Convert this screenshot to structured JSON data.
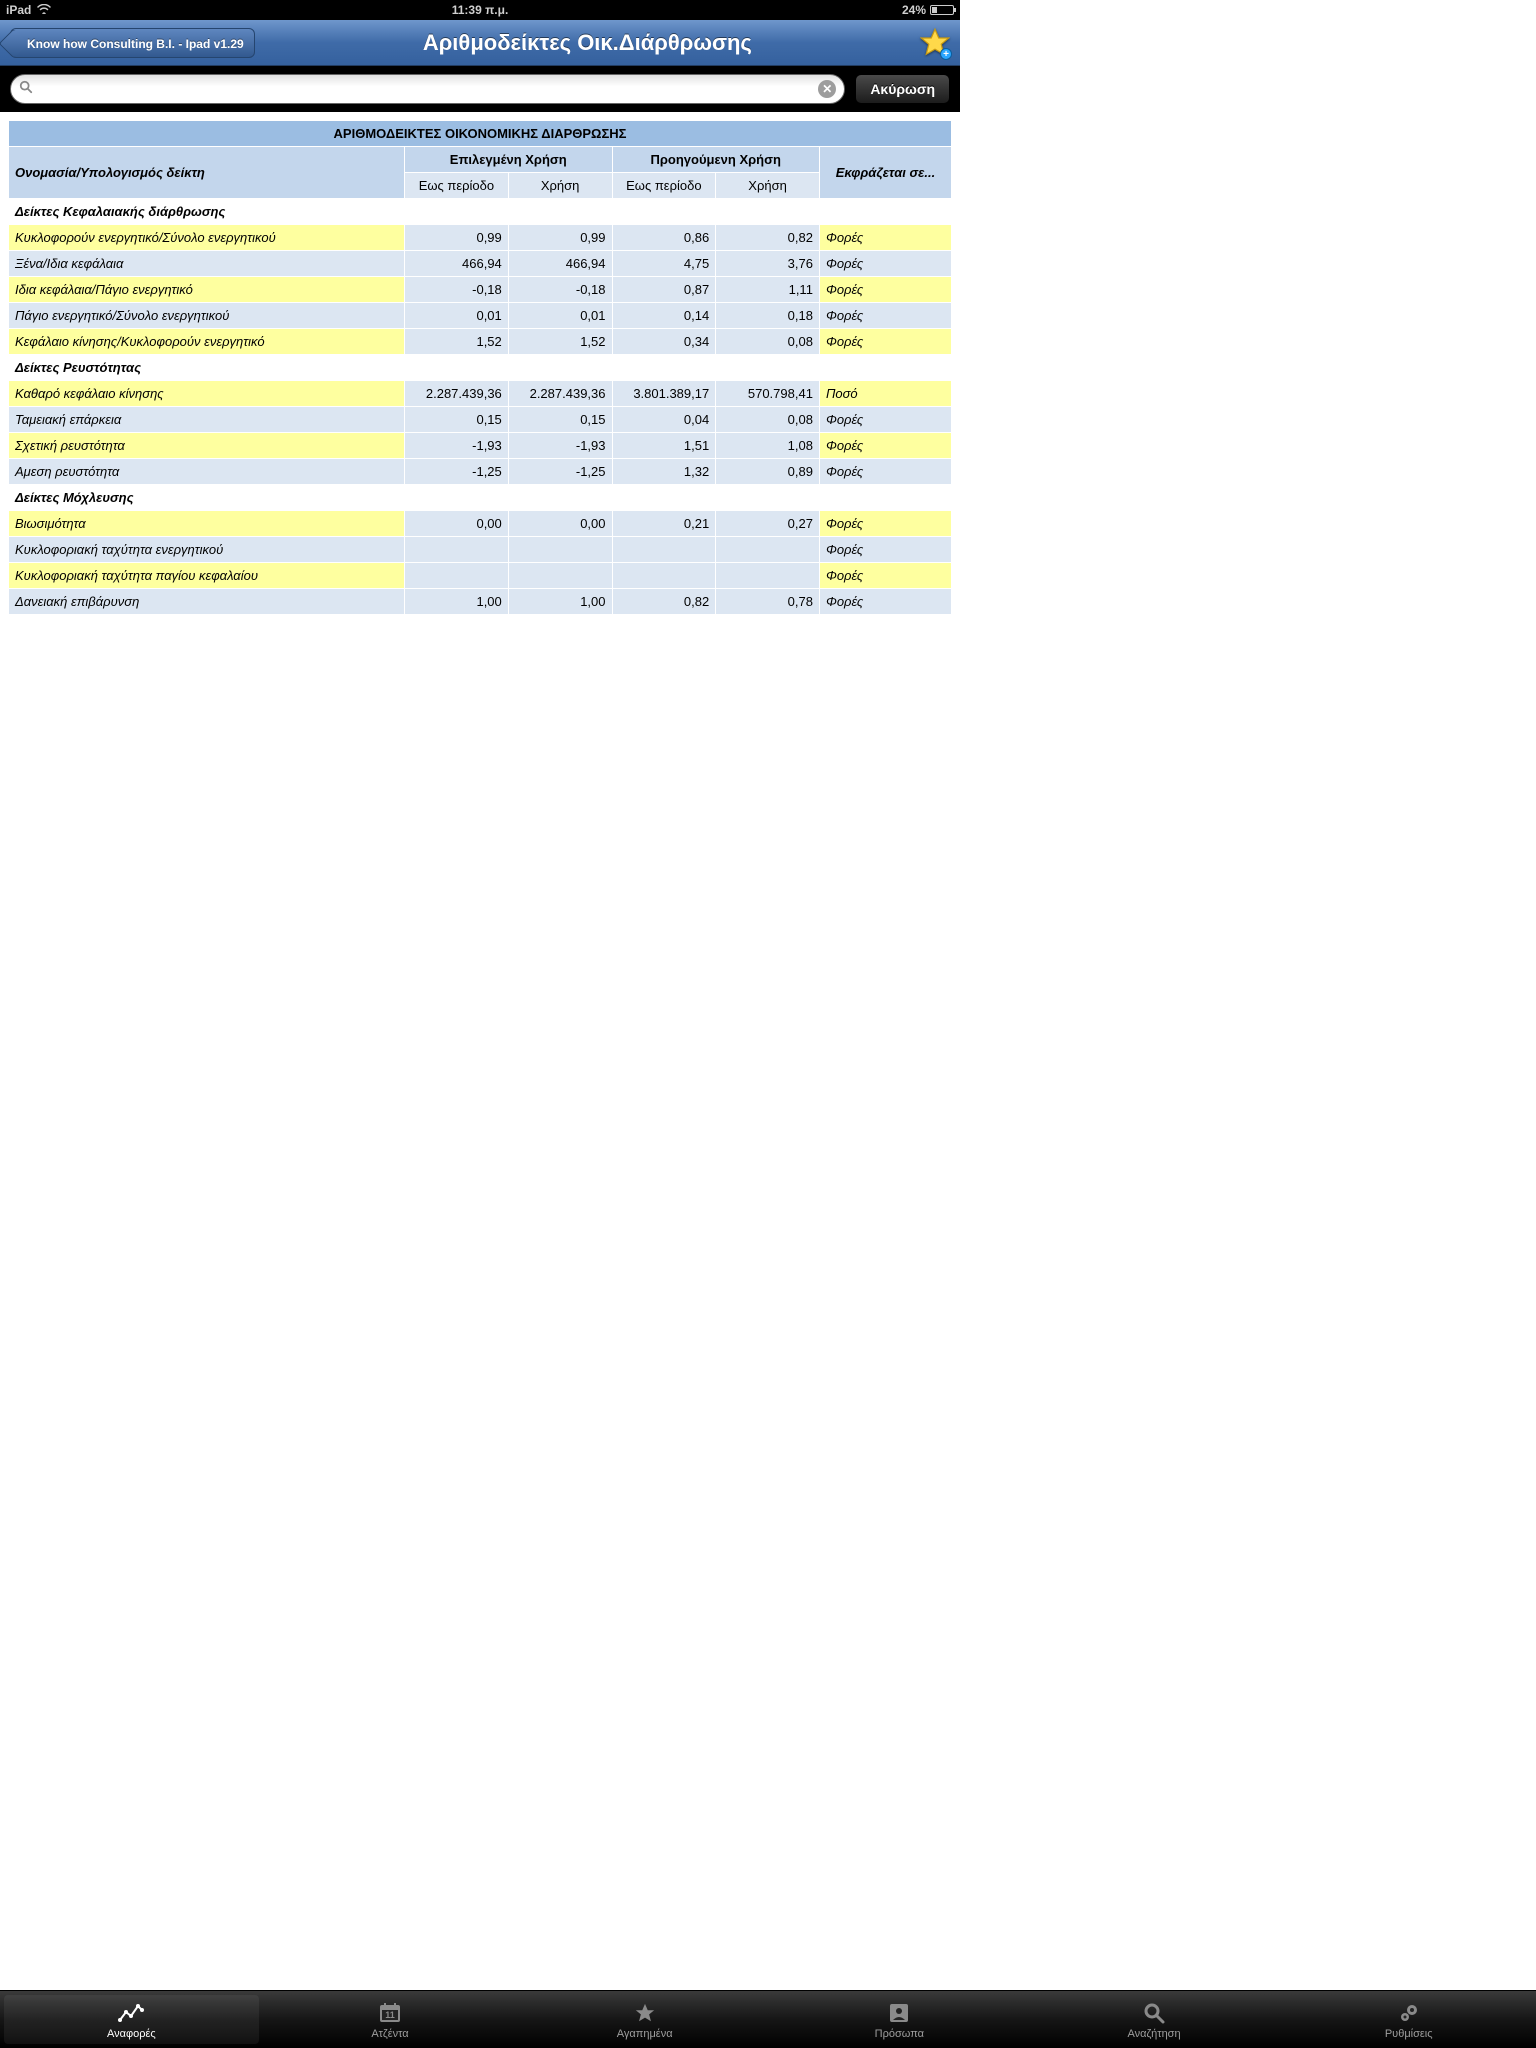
{
  "statusbar": {
    "device": "iPad",
    "time": "11:39 π.μ.",
    "battery_pct": "24%"
  },
  "navbar": {
    "back": "Know how Consulting B.I. - Ipad v1.29",
    "title": "Αριθμοδείκτες Οικ.Διάρθρωσης"
  },
  "searchbar": {
    "placeholder": "",
    "cancel": "Ακύρωση"
  },
  "table": {
    "title": "ΑΡΙΘΜΟΔΕΙΚΤΕΣ ΟΙΚΟΝΟΜΙΚΗΣ ΔΙΑΡΘΡΩΣΗΣ",
    "row_header": "Ονομασία/Υπολογισμός δείκτη",
    "group_a": "Επιλεγμένη Χρήση",
    "group_b": "Προηγούμενη Χρήση",
    "sub_period": "Εως περίοδο",
    "sub_year": "Χρήση",
    "expr_header": "Εκφράζεται σε...",
    "sections": [
      {
        "title": "Δείκτες Κεφαλαιακής διάρθρωσης",
        "rows": [
          {
            "label": "Κυκλοφορούν ενεργητικό/Σύνολο ενεργητικού",
            "v": [
              "0,99",
              "0,99",
              "0,86",
              "0,82"
            ],
            "expr": "Φορές"
          },
          {
            "label": "Ξένα/Ιδια κεφάλαια",
            "v": [
              "466,94",
              "466,94",
              "4,75",
              "3,76"
            ],
            "expr": "Φορές"
          },
          {
            "label": "Ιδια κεφάλαια/Πάγιο ενεργητικό",
            "v": [
              "-0,18",
              "-0,18",
              "0,87",
              "1,11"
            ],
            "expr": "Φορές"
          },
          {
            "label": "Πάγιο ενεργητικό/Σύνολο ενεργητικού",
            "v": [
              "0,01",
              "0,01",
              "0,14",
              "0,18"
            ],
            "expr": "Φορές"
          },
          {
            "label": "Κεφάλαιο κίνησης/Κυκλοφορούν ενεργητικό",
            "v": [
              "1,52",
              "1,52",
              "0,34",
              "0,08"
            ],
            "expr": "Φορές"
          }
        ]
      },
      {
        "title": "Δείκτες Ρευστότητας",
        "rows": [
          {
            "label": "Καθαρό κεφάλαιο κίνησης",
            "v": [
              "2.287.439,36",
              "2.287.439,36",
              "3.801.389,17",
              "570.798,41"
            ],
            "expr": "Ποσό"
          },
          {
            "label": "Ταμειακή επάρκεια",
            "v": [
              "0,15",
              "0,15",
              "0,04",
              "0,08"
            ],
            "expr": "Φορές"
          },
          {
            "label": "Σχετική ρευστότητα",
            "v": [
              "-1,93",
              "-1,93",
              "1,51",
              "1,08"
            ],
            "expr": "Φορές"
          },
          {
            "label": "Αμεση ρευστότητα",
            "v": [
              "-1,25",
              "-1,25",
              "1,32",
              "0,89"
            ],
            "expr": "Φορές"
          }
        ]
      },
      {
        "title": "Δείκτες Μόχλευσης",
        "rows": [
          {
            "label": "Βιωσιμότητα",
            "v": [
              "0,00",
              "0,00",
              "0,21",
              "0,27"
            ],
            "expr": "Φορές"
          },
          {
            "label": "Κυκλοφοριακή ταχύτητα ενεργητικού",
            "v": [
              "",
              "",
              "",
              ""
            ],
            "expr": "Φορές"
          },
          {
            "label": "Κυκλοφοριακή ταχύτητα παγίου κεφαλαίου",
            "v": [
              "",
              "",
              "",
              ""
            ],
            "expr": "Φορές"
          },
          {
            "label": "Δανειακή επιβάρυνση",
            "v": [
              "1,00",
              "1,00",
              "0,82",
              "0,78"
            ],
            "expr": "Φορές"
          }
        ]
      }
    ],
    "col_widths": [
      "42%",
      "11%",
      "11%",
      "11%",
      "11%",
      "14%"
    ],
    "colors": {
      "title_bg": "#9bbde2",
      "head_bg": "#c3d6ec",
      "sub_bg": "#dce6f2",
      "yellow": "#feff9f"
    }
  },
  "tabs": [
    {
      "label": "Αναφορές",
      "icon": "chart-line-icon",
      "active": true
    },
    {
      "label": "Ατζέντα",
      "icon": "calendar-icon"
    },
    {
      "label": "Αγαπημένα",
      "icon": "star-icon"
    },
    {
      "label": "Πρόσωπα",
      "icon": "contact-icon"
    },
    {
      "label": "Αναζήτηση",
      "icon": "search-icon"
    },
    {
      "label": "Ρυθμίσεις",
      "icon": "gear-icon"
    }
  ]
}
